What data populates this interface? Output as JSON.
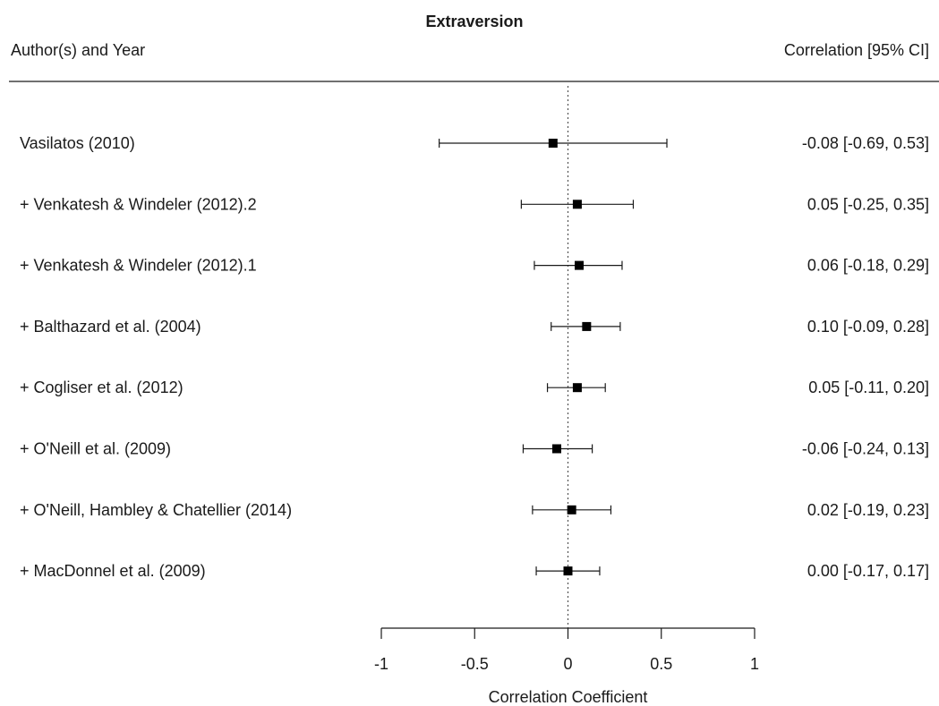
{
  "chart_data": {
    "type": "forest",
    "title": "Extraversion",
    "left_header": "Author(s) and Year",
    "right_header": "Correlation [95% CI]",
    "xlabel": "Correlation Coefficient",
    "xlim": [
      -1,
      1
    ],
    "xticks": [
      -1,
      -0.5,
      0,
      0.5,
      1
    ],
    "xtick_labels": [
      "-1",
      "-0.5",
      "0",
      "0.5",
      "1"
    ],
    "reference_line": 0,
    "studies": [
      {
        "label": "Vasilatos (2010)",
        "estimate": -0.08,
        "lower": -0.69,
        "upper": 0.53,
        "ci_text": "-0.08 [-0.69, 0.53]"
      },
      {
        "label": "+ Venkatesh & Windeler (2012).2",
        "estimate": 0.05,
        "lower": -0.25,
        "upper": 0.35,
        "ci_text": "0.05 [-0.25, 0.35]"
      },
      {
        "label": "+ Venkatesh & Windeler (2012).1",
        "estimate": 0.06,
        "lower": -0.18,
        "upper": 0.29,
        "ci_text": "0.06 [-0.18, 0.29]"
      },
      {
        "label": "+ Balthazard et al. (2004)",
        "estimate": 0.1,
        "lower": -0.09,
        "upper": 0.28,
        "ci_text": "0.10 [-0.09, 0.28]"
      },
      {
        "label": "+ Cogliser et al. (2012)",
        "estimate": 0.05,
        "lower": -0.11,
        "upper": 0.2,
        "ci_text": "0.05 [-0.11, 0.20]"
      },
      {
        "label": "+ O'Neill et al. (2009)",
        "estimate": -0.06,
        "lower": -0.24,
        "upper": 0.13,
        "ci_text": "-0.06 [-0.24, 0.13]"
      },
      {
        "label": "+ O'Neill, Hambley & Chatellier (2014)",
        "estimate": 0.02,
        "lower": -0.19,
        "upper": 0.23,
        "ci_text": "0.02 [-0.19, 0.23]"
      },
      {
        "label": "+ MacDonnel et al. (2009)",
        "estimate": 0.0,
        "lower": -0.17,
        "upper": 0.17,
        "ci_text": "0.00 [-0.17, 0.17]"
      }
    ]
  }
}
